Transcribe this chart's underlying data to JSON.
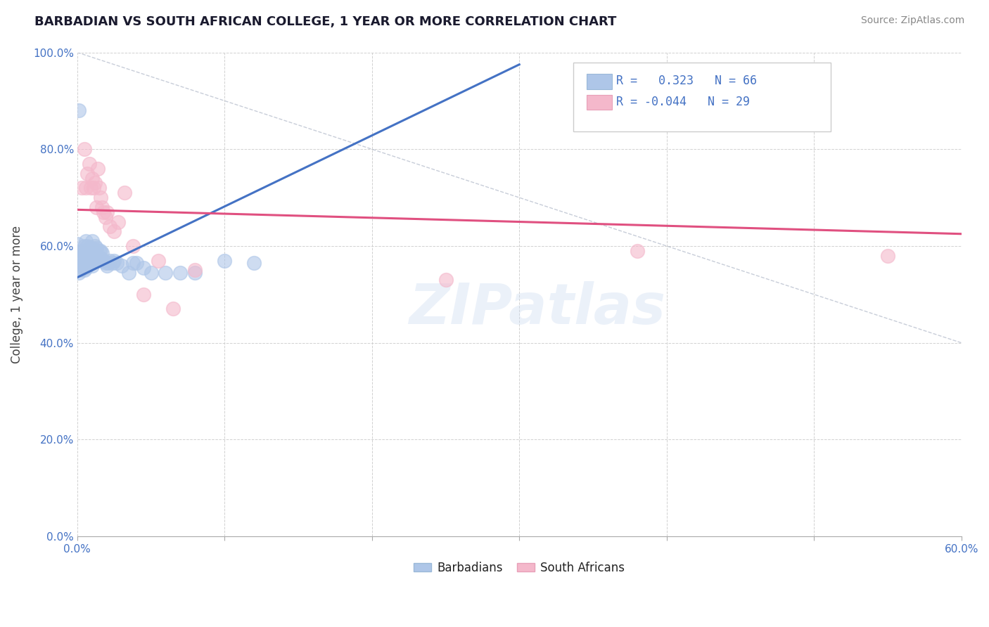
{
  "title": "BARBADIAN VS SOUTH AFRICAN COLLEGE, 1 YEAR OR MORE CORRELATION CHART",
  "source": "Source: ZipAtlas.com",
  "ylabel": "College, 1 year or more",
  "xlim": [
    0.0,
    0.6
  ],
  "ylim": [
    0.0,
    1.0
  ],
  "yticks": [
    0.0,
    0.2,
    0.4,
    0.6,
    0.8,
    1.0
  ],
  "ytick_labels": [
    "0.0%",
    "20.0%",
    "40.0%",
    "60.0%",
    "80.0%",
    "100.0%"
  ],
  "xtick_positions": [
    0.0,
    0.1,
    0.2,
    0.3,
    0.4,
    0.5,
    0.6
  ],
  "xtick_labels_sparse": {
    "0": "0.0%",
    "6": "60.0%"
  },
  "barbadian_color": "#aec6e8",
  "south_african_color": "#f4b8cb",
  "trend_blue": "#4472c4",
  "trend_pink": "#e05080",
  "watermark": "ZIPatlas",
  "legend_R_blue": "0.323",
  "legend_N_blue": "66",
  "legend_R_pink": "-0.044",
  "legend_N_pink": "29",
  "blue_trend_x0": 0.0,
  "blue_trend_y0": 0.535,
  "blue_trend_x1": 0.3,
  "blue_trend_y1": 0.975,
  "pink_trend_x0": 0.0,
  "pink_trend_y0": 0.675,
  "pink_trend_x1": 0.6,
  "pink_trend_y1": 0.625,
  "barbadian_x": [
    0.001,
    0.001,
    0.002,
    0.002,
    0.003,
    0.003,
    0.004,
    0.004,
    0.005,
    0.005,
    0.005,
    0.005,
    0.006,
    0.006,
    0.006,
    0.006,
    0.007,
    0.007,
    0.007,
    0.007,
    0.008,
    0.008,
    0.008,
    0.008,
    0.009,
    0.009,
    0.009,
    0.01,
    0.01,
    0.01,
    0.01,
    0.01,
    0.011,
    0.011,
    0.012,
    0.012,
    0.012,
    0.013,
    0.013,
    0.014,
    0.015,
    0.015,
    0.016,
    0.016,
    0.017,
    0.018,
    0.019,
    0.02,
    0.021,
    0.022,
    0.024,
    0.025,
    0.027,
    0.03,
    0.035,
    0.038,
    0.04,
    0.045,
    0.05,
    0.06,
    0.07,
    0.08,
    0.1,
    0.12,
    0.0,
    0.001
  ],
  "barbadian_y": [
    0.545,
    0.575,
    0.55,
    0.58,
    0.56,
    0.59,
    0.565,
    0.59,
    0.55,
    0.565,
    0.575,
    0.6,
    0.555,
    0.57,
    0.585,
    0.61,
    0.56,
    0.575,
    0.59,
    0.6,
    0.565,
    0.575,
    0.585,
    0.595,
    0.565,
    0.58,
    0.595,
    0.56,
    0.575,
    0.585,
    0.595,
    0.61,
    0.57,
    0.59,
    0.57,
    0.585,
    0.6,
    0.575,
    0.595,
    0.58,
    0.575,
    0.59,
    0.575,
    0.59,
    0.585,
    0.57,
    0.565,
    0.56,
    0.565,
    0.57,
    0.565,
    0.57,
    0.565,
    0.56,
    0.545,
    0.565,
    0.565,
    0.555,
    0.545,
    0.545,
    0.545,
    0.545,
    0.57,
    0.565,
    0.605,
    0.88
  ],
  "south_african_x": [
    0.003,
    0.005,
    0.006,
    0.007,
    0.008,
    0.009,
    0.01,
    0.011,
    0.012,
    0.013,
    0.014,
    0.015,
    0.016,
    0.017,
    0.018,
    0.019,
    0.02,
    0.022,
    0.025,
    0.028,
    0.032,
    0.038,
    0.045,
    0.055,
    0.065,
    0.08,
    0.25,
    0.38,
    0.55
  ],
  "south_african_y": [
    0.72,
    0.8,
    0.72,
    0.75,
    0.77,
    0.72,
    0.74,
    0.72,
    0.73,
    0.68,
    0.76,
    0.72,
    0.7,
    0.68,
    0.67,
    0.66,
    0.67,
    0.64,
    0.63,
    0.65,
    0.71,
    0.6,
    0.5,
    0.57,
    0.47,
    0.55,
    0.53,
    0.59,
    0.58
  ]
}
